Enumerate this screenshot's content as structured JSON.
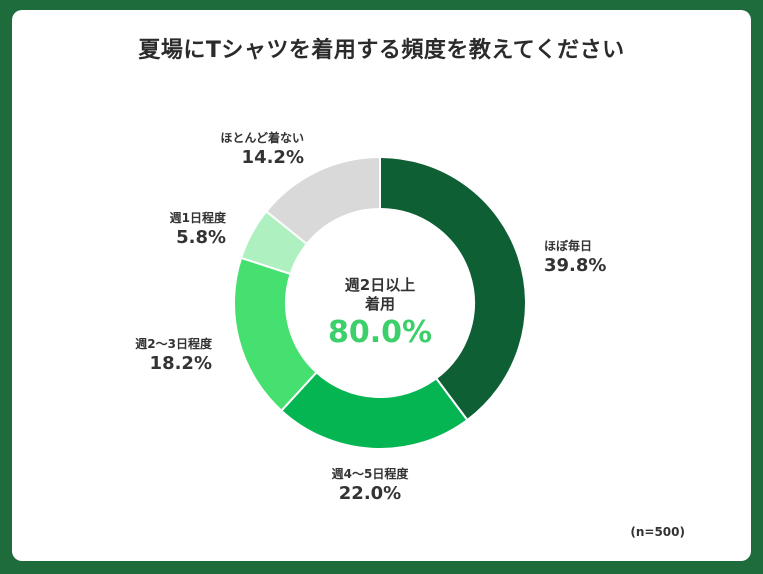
{
  "title": "夏場にTシャツを着用する頻度を教えてください",
  "sample_note": "(n=500)",
  "center": {
    "line1": "週2日以上",
    "line2": "着用",
    "value": "80.0%"
  },
  "colors": {
    "center_value": "#3ccf6a"
  },
  "chart_data": {
    "type": "pie",
    "title": "夏場にTシャツを着用する頻度を教えてください",
    "slices": [
      {
        "label": "ほぼ毎日",
        "value": 39.8,
        "display": "39.8%",
        "color": "#0e5f34"
      },
      {
        "label": "週4～5日程度",
        "value": 22.0,
        "display": "22.0%",
        "color": "#05b552"
      },
      {
        "label": "週2～3日程度",
        "value": 18.2,
        "display": "18.2%",
        "color": "#45e06f"
      },
      {
        "label": "週1日程度",
        "value": 5.8,
        "display": "5.8%",
        "color": "#aef0bf"
      },
      {
        "label": "ほとんど着ない",
        "value": 14.2,
        "display": "14.2%",
        "color": "#d9d9d9"
      }
    ]
  }
}
